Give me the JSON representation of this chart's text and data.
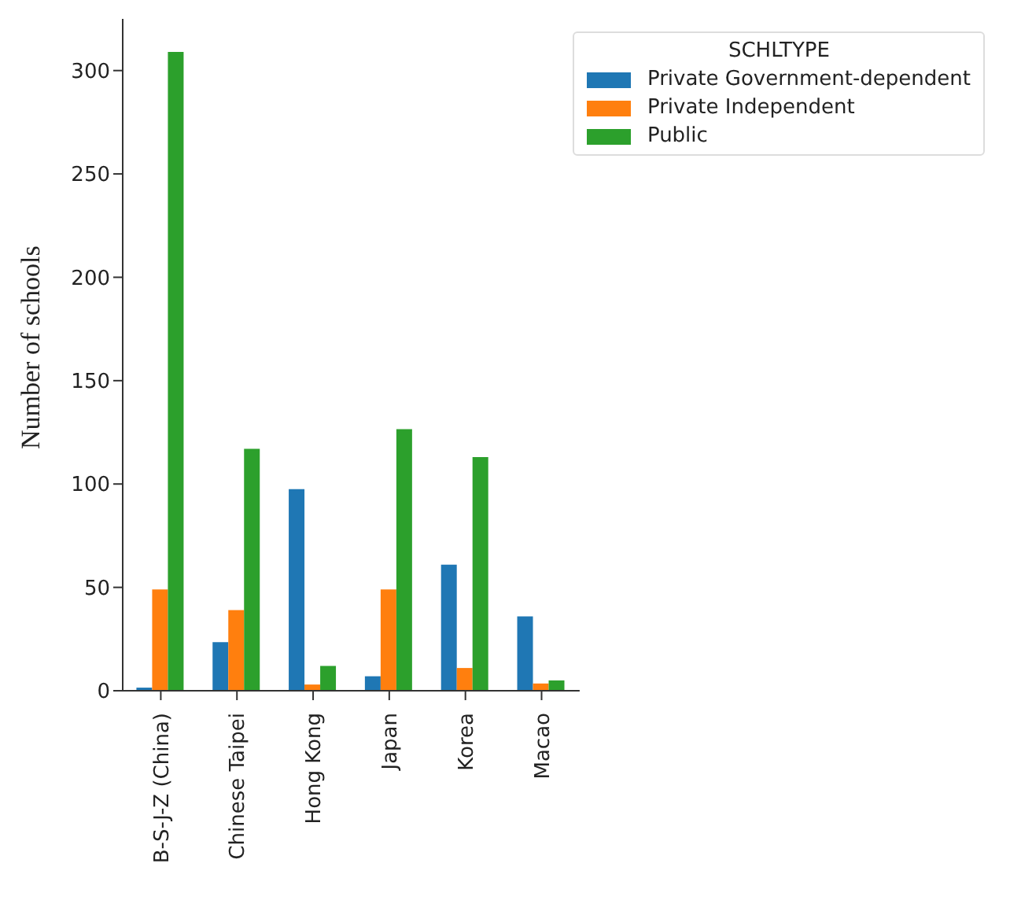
{
  "chart_data": {
    "type": "bar",
    "ylabel": "Number of schools",
    "legend_title": "SCHLTYPE",
    "legend": "top right",
    "categories": [
      "B-S-J-Z (China)",
      "Chinese Taipei",
      "Hong Kong",
      "Japan",
      "Korea",
      "Macao"
    ],
    "series": [
      {
        "name": "Private Government-dependent",
        "color": "#1f77b4",
        "values": [
          1.5,
          23.5,
          97.5,
          7,
          61,
          36
        ]
      },
      {
        "name": "Private Independent",
        "color": "#ff7f0e",
        "values": [
          49,
          39,
          3,
          49,
          11,
          3.5
        ]
      },
      {
        "name": "Public",
        "color": "#2ca02c",
        "values": [
          309,
          117,
          12,
          126.5,
          113,
          5
        ]
      }
    ],
    "ylim": [
      0,
      325
    ],
    "yticks": [
      0,
      50,
      100,
      150,
      200,
      250,
      300
    ],
    "grid": false
  }
}
